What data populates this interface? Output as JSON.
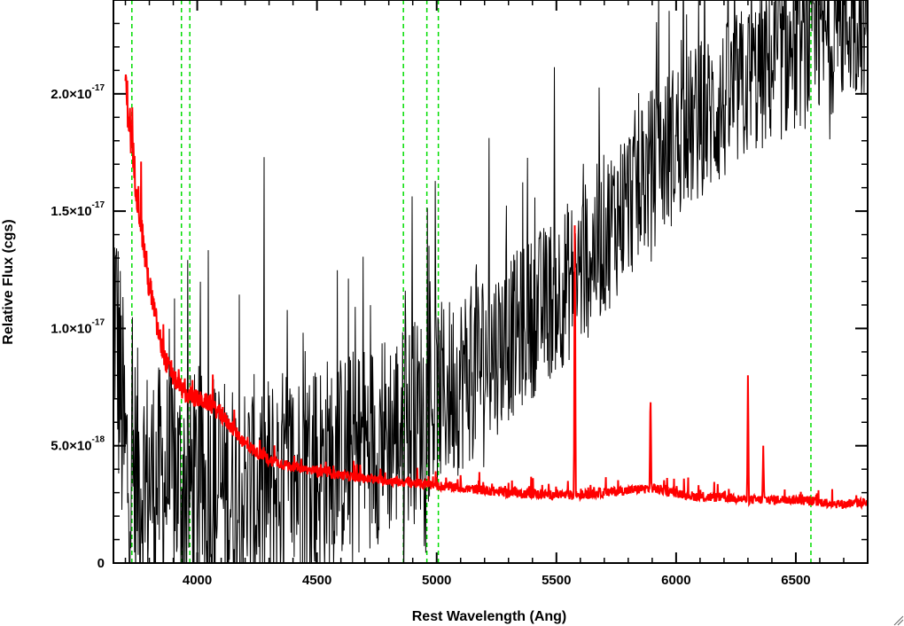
{
  "chart_data": {
    "type": "line",
    "xlabel": "Rest Wavelength (Ang)",
    "ylabel": "Relative Flux (cgs)",
    "xlim": [
      3650,
      6800
    ],
    "ylim": [
      0,
      2.4e-17
    ],
    "x_ticks": [
      {
        "value": 4000,
        "label": "4000"
      },
      {
        "value": 4500,
        "label": "4500"
      },
      {
        "value": 5000,
        "label": "5000"
      },
      {
        "value": 5500,
        "label": "5500"
      },
      {
        "value": 6000,
        "label": "6000"
      },
      {
        "value": 6500,
        "label": "6500"
      }
    ],
    "y_ticks": [
      {
        "value": 0,
        "mant": "0",
        "exp": ""
      },
      {
        "value": 5e-18,
        "mant": "5.0×10",
        "exp": "-18"
      },
      {
        "value": 1e-17,
        "mant": "1.0×10",
        "exp": "-17"
      },
      {
        "value": 1.5e-17,
        "mant": "1.5×10",
        "exp": "-17"
      },
      {
        "value": 2e-17,
        "mant": "2.0×10",
        "exp": "-17"
      }
    ],
    "grid": false,
    "reference_lines": {
      "style": "dashed",
      "color": "#00dd00",
      "x": [
        3727,
        3934,
        3969,
        4861,
        4959,
        5007,
        6563
      ]
    },
    "series": [
      {
        "color": "#000000",
        "style": "noisy",
        "x": [
          3650,
          3700,
          3800,
          3900,
          4000,
          4100,
          4200,
          4300,
          4400,
          4500,
          4600,
          4700,
          4800,
          4900,
          5000,
          5100,
          5200,
          5300,
          5400,
          5500,
          5600,
          5700,
          5800,
          5900,
          6000,
          6100,
          6200,
          6300,
          6400,
          6500,
          6600,
          6700,
          6800
        ],
        "y": [
          1.2e-17,
          4e-18,
          3.5e-18,
          3.5e-18,
          3.2e-18,
          3e-18,
          3e-18,
          3.2e-18,
          3.6e-18,
          4e-18,
          4.5e-18,
          5e-18,
          5.5e-18,
          6e-18,
          7e-18,
          7.8e-18,
          8.8e-18,
          9.5e-18,
          1.05e-17,
          1.15e-17,
          1.25e-17,
          1.4e-17,
          1.55e-17,
          1.68e-17,
          1.8e-17,
          1.88e-17,
          1.95e-17,
          2.05e-17,
          2.12e-17,
          2.18e-17,
          2.22e-17,
          2.3e-17,
          2.35e-17
        ],
        "amplitude": [
          6e-18,
          6e-18,
          5e-18,
          5e-18,
          5e-18,
          5e-18,
          5e-18,
          5e-18,
          5e-18,
          5e-18,
          4.5e-18,
          4.5e-18,
          4.5e-18,
          4.5e-18,
          4e-18,
          4e-18,
          4e-18,
          3.5e-18,
          3.5e-18,
          3.5e-18,
          3.5e-18,
          3.5e-18,
          3.5e-18,
          3.5e-18,
          3.5e-18,
          3.5e-18,
          3.5e-18,
          3.5e-18,
          3.5e-18,
          3.5e-18,
          3.5e-18,
          3.5e-18,
          3.5e-18
        ]
      },
      {
        "color": "#ff0000",
        "style": "smooth",
        "x": [
          3700,
          3720,
          3740,
          3760,
          3780,
          3800,
          3830,
          3860,
          3900,
          3950,
          4000,
          4050,
          4100,
          4150,
          4200,
          4250,
          4300,
          4400,
          4500,
          4600,
          4700,
          4800,
          4900,
          5000,
          5100,
          5200,
          5300,
          5400,
          5500,
          5600,
          5700,
          5800,
          5900,
          6000,
          6100,
          6200,
          6300,
          6400,
          6500,
          6600,
          6700,
          6800
        ],
        "y": [
          2.05e-17,
          1.85e-17,
          1.65e-17,
          1.5e-17,
          1.32e-17,
          1.18e-17,
          1.02e-17,
          8.8e-18,
          7.9e-18,
          7.2e-18,
          7e-18,
          6.8e-18,
          6.3e-18,
          5.7e-18,
          5.1e-18,
          4.7e-18,
          4.4e-18,
          4.1e-18,
          3.9e-18,
          3.75e-18,
          3.6e-18,
          3.5e-18,
          3.4e-18,
          3.3e-18,
          3.2e-18,
          3.1e-18,
          3e-18,
          2.95e-18,
          2.9e-18,
          2.9e-18,
          3e-18,
          3.1e-18,
          3.2e-18,
          3e-18,
          2.8e-18,
          2.8e-18,
          2.7e-18,
          2.7e-18,
          2.7e-18,
          2.6e-18,
          2.5e-18,
          2.6e-18
        ],
        "amplitude": [
          1e-18,
          1e-18,
          8e-19,
          8e-19,
          7e-19,
          7e-19,
          6e-19,
          5e-19,
          4e-19,
          4e-19,
          4e-19,
          3.5e-19,
          3.5e-19,
          3e-19,
          3e-19,
          2.5e-19,
          2.5e-19,
          2e-19,
          2e-19,
          2e-19,
          2e-19,
          2e-19,
          2e-19,
          2e-19,
          2e-19,
          2e-19,
          2e-19,
          2e-19,
          2e-19,
          2e-19,
          2e-19,
          2e-19,
          2e-19,
          2e-19,
          2e-19,
          2e-19,
          2e-19,
          2e-19,
          2e-19,
          2e-19,
          2e-19,
          2e-19
        ],
        "emission_lines": [
          {
            "x": 5577,
            "y": 1.5e-17
          },
          {
            "x": 5893,
            "y": 7.5e-18
          },
          {
            "x": 6300,
            "y": 8e-18
          },
          {
            "x": 6364,
            "y": 5e-18
          }
        ]
      }
    ]
  }
}
